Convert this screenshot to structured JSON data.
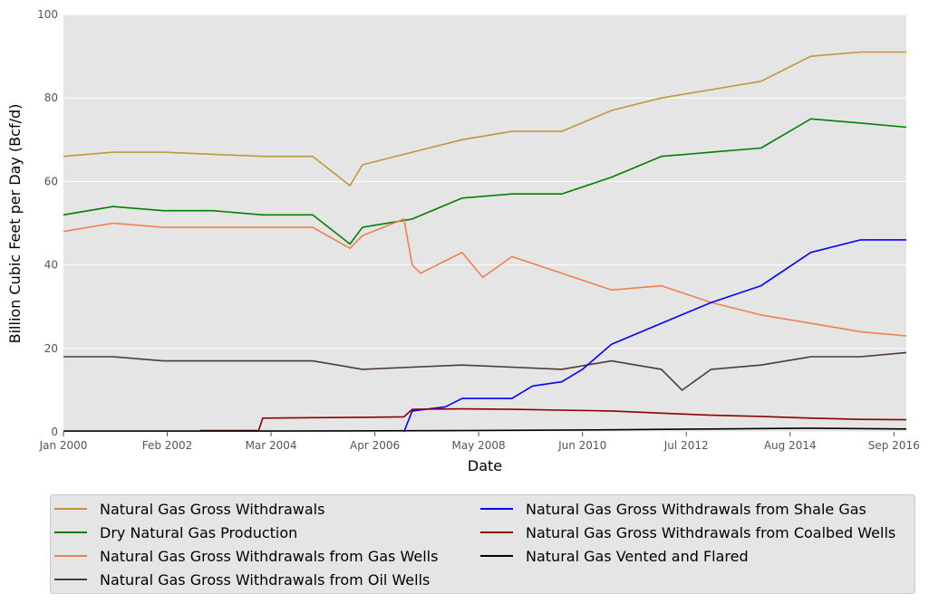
{
  "chart_data": {
    "type": "line",
    "xlabel": "Date",
    "ylabel": "Billion Cubic Feet per Day (Bcf/d)",
    "ylim": [
      0,
      100
    ],
    "xlim": [
      "2000-01",
      "2016-12"
    ],
    "yticks": [
      "0",
      "20",
      "40",
      "60",
      "80",
      "100"
    ],
    "xticks": [
      {
        "date": "2000-01",
        "label": "Jan 2000"
      },
      {
        "date": "2002-02",
        "label": "Feb 2002"
      },
      {
        "date": "2004-03",
        "label": "Mar 2004"
      },
      {
        "date": "2006-04",
        "label": "Apr 2006"
      },
      {
        "date": "2008-05",
        "label": "May 2008"
      },
      {
        "date": "2010-06",
        "label": "Jun 2010"
      },
      {
        "date": "2012-07",
        "label": "Jul 2012"
      },
      {
        "date": "2014-08",
        "label": "Aug 2014"
      },
      {
        "date": "2016-09",
        "label": "Sep 2016"
      }
    ],
    "grid": true,
    "legend_position": "bottom",
    "series": [
      {
        "name": "Natural Gas Gross Withdrawals",
        "color": "#c0963c",
        "points": [
          [
            "2000-01",
            66
          ],
          [
            "2001-01",
            67
          ],
          [
            "2002-01",
            67
          ],
          [
            "2003-01",
            66.5
          ],
          [
            "2004-01",
            66
          ],
          [
            "2005-01",
            66
          ],
          [
            "2005-10",
            59
          ],
          [
            "2006-01",
            64
          ],
          [
            "2007-01",
            67
          ],
          [
            "2008-01",
            70
          ],
          [
            "2009-01",
            72
          ],
          [
            "2010-01",
            72
          ],
          [
            "2011-01",
            77
          ],
          [
            "2012-01",
            80
          ],
          [
            "2013-01",
            82
          ],
          [
            "2014-01",
            84
          ],
          [
            "2015-01",
            90
          ],
          [
            "2016-01",
            91
          ],
          [
            "2016-12",
            91
          ]
        ]
      },
      {
        "name": "Dry Natural Gas Production",
        "color": "#008000",
        "points": [
          [
            "2000-01",
            52
          ],
          [
            "2001-01",
            54
          ],
          [
            "2002-01",
            53
          ],
          [
            "2003-01",
            53
          ],
          [
            "2004-01",
            52
          ],
          [
            "2005-01",
            52
          ],
          [
            "2005-10",
            45
          ],
          [
            "2006-01",
            49
          ],
          [
            "2007-01",
            51
          ],
          [
            "2008-01",
            56
          ],
          [
            "2009-01",
            57
          ],
          [
            "2010-01",
            57
          ],
          [
            "2011-01",
            61
          ],
          [
            "2012-01",
            66
          ],
          [
            "2013-01",
            67
          ],
          [
            "2014-01",
            68
          ],
          [
            "2015-01",
            75
          ],
          [
            "2016-01",
            74
          ],
          [
            "2016-12",
            73
          ]
        ]
      },
      {
        "name": "Natural Gas Gross Withdrawals from Gas Wells",
        "color": "#f08050",
        "points": [
          [
            "2000-01",
            48
          ],
          [
            "2001-01",
            50
          ],
          [
            "2002-01",
            49
          ],
          [
            "2003-01",
            49
          ],
          [
            "2004-01",
            49
          ],
          [
            "2005-01",
            49
          ],
          [
            "2005-10",
            44
          ],
          [
            "2006-01",
            47
          ],
          [
            "2006-11",
            51
          ],
          [
            "2007-01",
            40
          ],
          [
            "2007-03",
            38
          ],
          [
            "2008-01",
            43
          ],
          [
            "2008-06",
            37
          ],
          [
            "2009-01",
            42
          ],
          [
            "2010-01",
            38
          ],
          [
            "2011-01",
            34
          ],
          [
            "2012-01",
            35
          ],
          [
            "2013-01",
            31
          ],
          [
            "2014-01",
            28
          ],
          [
            "2015-01",
            26
          ],
          [
            "2016-01",
            24
          ],
          [
            "2016-12",
            23
          ]
        ]
      },
      {
        "name": "Natural Gas Gross Withdrawals from Oil Wells",
        "color": "#4d3a33",
        "points": [
          [
            "2000-01",
            18
          ],
          [
            "2001-01",
            18
          ],
          [
            "2002-01",
            17
          ],
          [
            "2003-01",
            17
          ],
          [
            "2004-01",
            17
          ],
          [
            "2005-01",
            17
          ],
          [
            "2006-01",
            15
          ],
          [
            "2007-01",
            15.5
          ],
          [
            "2008-01",
            16
          ],
          [
            "2009-01",
            15.5
          ],
          [
            "2010-01",
            15
          ],
          [
            "2011-01",
            17
          ],
          [
            "2012-01",
            15
          ],
          [
            "2012-06",
            10
          ],
          [
            "2013-01",
            15
          ],
          [
            "2014-01",
            16
          ],
          [
            "2015-01",
            18
          ],
          [
            "2016-01",
            18
          ],
          [
            "2016-12",
            19
          ]
        ]
      },
      {
        "name": "Natural Gas Gross Withdrawals from Shale Gas",
        "color": "#0000ff",
        "points": [
          [
            "2006-11",
            0
          ],
          [
            "2007-01",
            5
          ],
          [
            "2007-09",
            6
          ],
          [
            "2008-01",
            8
          ],
          [
            "2009-01",
            8
          ],
          [
            "2009-06",
            11
          ],
          [
            "2010-01",
            12
          ],
          [
            "2010-06",
            15
          ],
          [
            "2011-01",
            21
          ],
          [
            "2012-01",
            26
          ],
          [
            "2013-01",
            31
          ],
          [
            "2014-01",
            35
          ],
          [
            "2015-01",
            43
          ],
          [
            "2016-01",
            46
          ],
          [
            "2016-12",
            46
          ]
        ]
      },
      {
        "name": "Natural Gas Gross Withdrawals from Coalbed Wells",
        "color": "#8b0000",
        "points": [
          [
            "2002-10",
            0.3
          ],
          [
            "2003-12",
            0.3
          ],
          [
            "2004-01",
            3.3
          ],
          [
            "2005-01",
            3.4
          ],
          [
            "2006-01",
            3.5
          ],
          [
            "2006-11",
            3.6
          ],
          [
            "2007-01",
            5.4
          ],
          [
            "2008-01",
            5.5
          ],
          [
            "2009-01",
            5.4
          ],
          [
            "2010-01",
            5.2
          ],
          [
            "2011-01",
            5
          ],
          [
            "2012-01",
            4.5
          ],
          [
            "2013-01",
            4
          ],
          [
            "2014-01",
            3.7
          ],
          [
            "2015-01",
            3.3
          ],
          [
            "2016-01",
            3
          ],
          [
            "2016-12",
            2.9
          ]
        ]
      },
      {
        "name": "Natural Gas Vented and Flared",
        "color": "#000000",
        "points": [
          [
            "2000-01",
            0.2
          ],
          [
            "2004-01",
            0.2
          ],
          [
            "2008-01",
            0.3
          ],
          [
            "2011-01",
            0.5
          ],
          [
            "2013-01",
            0.7
          ],
          [
            "2015-01",
            0.9
          ],
          [
            "2016-12",
            0.7
          ]
        ]
      }
    ]
  }
}
